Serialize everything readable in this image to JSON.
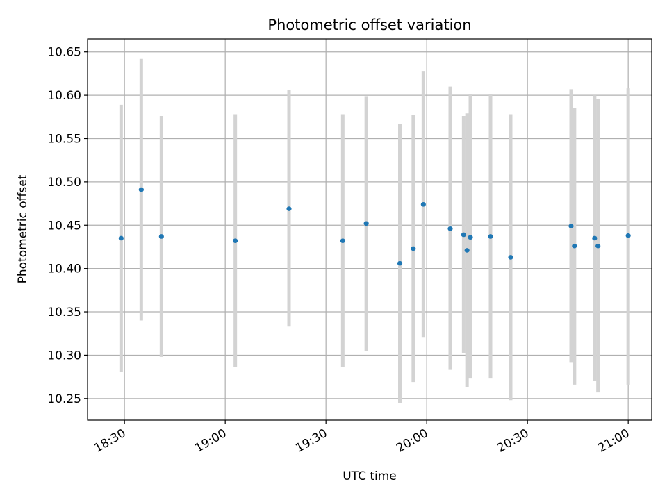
{
  "chart_data": {
    "type": "scatter",
    "title": "Photometric offset variation",
    "xlabel": "UTC time",
    "ylabel": "Photometric offset",
    "x_tick_labels": [
      "18:30",
      "19:00",
      "19:30",
      "20:00",
      "20:30",
      "21:00"
    ],
    "y_tick_labels": [
      "10.25",
      "10.30",
      "10.35",
      "10.40",
      "10.45",
      "10.50",
      "10.55",
      "10.60",
      "10.65"
    ],
    "xlim": [
      "18:19",
      "21:07"
    ],
    "ylim": [
      10.225,
      10.665
    ],
    "grid": true,
    "errorbar_color": "#d3d3d3",
    "point_color": "#1f77b4",
    "points": [
      {
        "x": "18:29",
        "y": 10.435,
        "ylow": 10.281,
        "yhigh": 10.589
      },
      {
        "x": "18:35",
        "y": 10.491,
        "ylow": 10.34,
        "yhigh": 10.642
      },
      {
        "x": "18:41",
        "y": 10.437,
        "ylow": 10.298,
        "yhigh": 10.576
      },
      {
        "x": "19:03",
        "y": 10.432,
        "ylow": 10.286,
        "yhigh": 10.578
      },
      {
        "x": "19:19",
        "y": 10.469,
        "ylow": 10.333,
        "yhigh": 10.606
      },
      {
        "x": "19:35",
        "y": 10.432,
        "ylow": 10.286,
        "yhigh": 10.578
      },
      {
        "x": "19:42",
        "y": 10.452,
        "ylow": 10.305,
        "yhigh": 10.599
      },
      {
        "x": "19:52",
        "y": 10.406,
        "ylow": 10.245,
        "yhigh": 10.567
      },
      {
        "x": "19:56",
        "y": 10.423,
        "ylow": 10.269,
        "yhigh": 10.577
      },
      {
        "x": "19:59",
        "y": 10.474,
        "ylow": 10.321,
        "yhigh": 10.628
      },
      {
        "x": "20:07",
        "y": 10.446,
        "ylow": 10.283,
        "yhigh": 10.61
      },
      {
        "x": "20:11",
        "y": 10.439,
        "ylow": 10.302,
        "yhigh": 10.576
      },
      {
        "x": "20:12",
        "y": 10.421,
        "ylow": 10.263,
        "yhigh": 10.579
      },
      {
        "x": "20:13",
        "y": 10.436,
        "ylow": 10.273,
        "yhigh": 10.601
      },
      {
        "x": "20:19",
        "y": 10.437,
        "ylow": 10.273,
        "yhigh": 10.601
      },
      {
        "x": "20:25",
        "y": 10.413,
        "ylow": 10.248,
        "yhigh": 10.578
      },
      {
        "x": "20:43",
        "y": 10.449,
        "ylow": 10.292,
        "yhigh": 10.607
      },
      {
        "x": "20:44",
        "y": 10.426,
        "ylow": 10.266,
        "yhigh": 10.585
      },
      {
        "x": "20:50",
        "y": 10.435,
        "ylow": 10.27,
        "yhigh": 10.6
      },
      {
        "x": "20:51",
        "y": 10.426,
        "ylow": 10.257,
        "yhigh": 10.596
      },
      {
        "x": "21:00",
        "y": 10.438,
        "ylow": 10.266,
        "yhigh": 10.608
      }
    ]
  }
}
